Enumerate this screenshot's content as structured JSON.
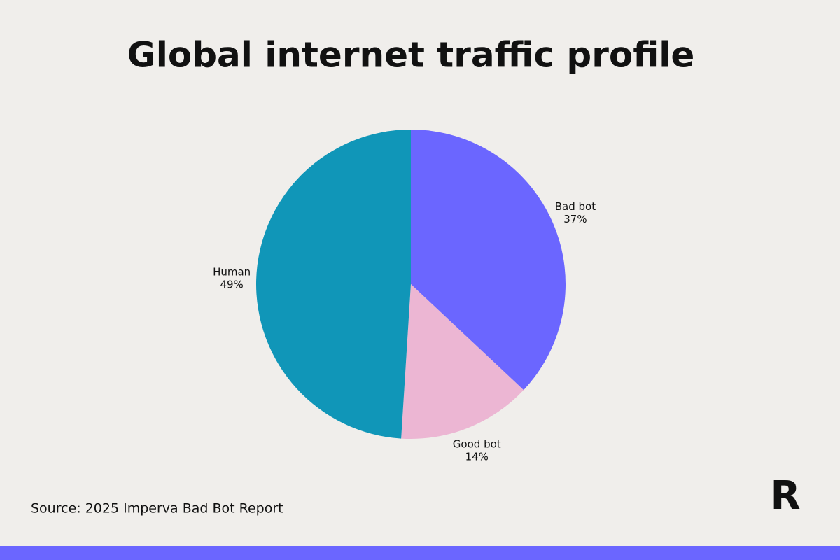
{
  "chart_data": {
    "type": "pie",
    "title": "Global internet traffic profile",
    "categories": [
      "Bad bot",
      "Good bot",
      "Human"
    ],
    "values": [
      37,
      14,
      49
    ],
    "value_labels": [
      "37%",
      "14%",
      "49%"
    ],
    "colors": [
      "#6b66ff",
      "#ecb6d3",
      "#1096b8"
    ],
    "source": "Source: 2025 Imperva Bad Bot Report",
    "logo": "R"
  }
}
